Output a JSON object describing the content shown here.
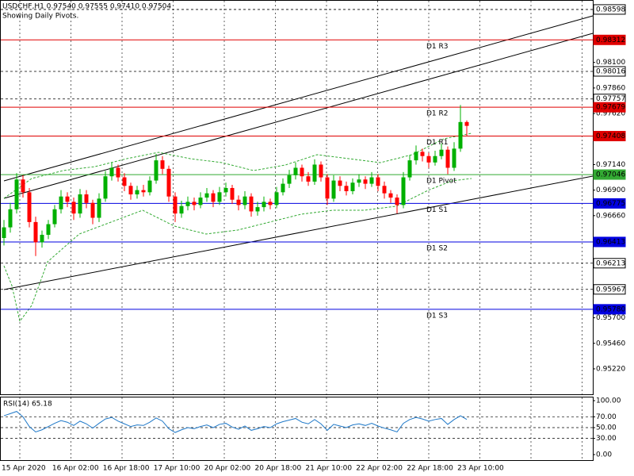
{
  "chart_data": {
    "type": "candlestick",
    "title": "USDCHF,H1  0.97540 0.97555 0.97410 0.97504",
    "subtitle": "Showing Daily Pivots.",
    "up_color": "#00b000",
    "down_color": "#ff0000",
    "grid": true,
    "ylim": [
      0.94981,
      0.98687
    ],
    "yticks": [
      {
        "value": 0.981,
        "label": "0.98100"
      },
      {
        "value": 0.9786,
        "label": "0.97860"
      },
      {
        "value": 0.9762,
        "label": "0.97620"
      },
      {
        "value": 0.9714,
        "label": "0.97140"
      },
      {
        "value": 0.969,
        "label": "0.96900"
      },
      {
        "value": 0.9666,
        "label": "0.96660"
      },
      {
        "value": 0.957,
        "label": "0.95700"
      },
      {
        "value": 0.9546,
        "label": "0.95460"
      },
      {
        "value": 0.9522,
        "label": "0.95220"
      }
    ],
    "levels": [
      0.98598,
      0.98016,
      0.97757,
      0.96213,
      0.95967
    ],
    "pivots": [
      {
        "name": "D1 R3",
        "value": 0.98312,
        "color": "#e00000"
      },
      {
        "name": "D1 R2",
        "value": 0.97679,
        "color": "#e00000"
      },
      {
        "name": "D1 R1",
        "value": 0.97408,
        "color": "#e00000"
      },
      {
        "name": "D1 Pivot",
        "value": 0.97046,
        "color": "#33aa33"
      },
      {
        "name": "D1 S1",
        "value": 0.96775,
        "color": "#0000e0"
      },
      {
        "name": "D1 S2",
        "value": 0.96413,
        "color": "#0000e0"
      },
      {
        "name": "D1 S3",
        "value": {
          "value": 0.9578,
          "label": "0.95780"
        },
        "color": "#0000e0"
      }
    ],
    "x_labels": [
      "15 Apr 2020",
      "16 Apr 02:00",
      "16 Apr 18:00",
      "17 Apr 10:00",
      "20 Apr 02:00",
      "20 Apr 18:00",
      "21 Apr 10:00",
      "22 Apr 02:00",
      "22 Apr 18:00",
      "23 Apr 10:00"
    ],
    "candles": [
      [
        0.9645,
        0.9662,
        0.9638,
        0.9655
      ],
      [
        0.9655,
        0.9678,
        0.965,
        0.9672
      ],
      [
        0.9672,
        0.9706,
        0.9668,
        0.97
      ],
      [
        0.97,
        0.9704,
        0.9683,
        0.9688
      ],
      [
        0.9688,
        0.9692,
        0.9655,
        0.966
      ],
      [
        0.966,
        0.9665,
        0.9628,
        0.9641
      ],
      [
        0.9641,
        0.9652,
        0.9636,
        0.9648
      ],
      [
        0.9648,
        0.9662,
        0.9644,
        0.9658
      ],
      [
        0.9658,
        0.9676,
        0.9655,
        0.9672
      ],
      [
        0.9672,
        0.969,
        0.9668,
        0.9684
      ],
      [
        0.9684,
        0.9688,
        0.9674,
        0.9679
      ],
      [
        0.9679,
        0.9683,
        0.9662,
        0.9668
      ],
      [
        0.9668,
        0.9691,
        0.9664,
        0.9686
      ],
      [
        0.9686,
        0.969,
        0.9673,
        0.9678
      ],
      [
        0.9678,
        0.9681,
        0.9658,
        0.9664
      ],
      [
        0.9664,
        0.9687,
        0.966,
        0.9682
      ],
      [
        0.9682,
        0.9708,
        0.9679,
        0.9703
      ],
      [
        0.9703,
        0.9716,
        0.9699,
        0.9711
      ],
      [
        0.9711,
        0.9714,
        0.9698,
        0.9702
      ],
      [
        0.9702,
        0.9706,
        0.9689,
        0.9694
      ],
      [
        0.9694,
        0.9697,
        0.9681,
        0.9686
      ],
      [
        0.9686,
        0.9694,
        0.9682,
        0.969
      ],
      [
        0.969,
        0.9695,
        0.9684,
        0.9688
      ],
      [
        0.9688,
        0.9703,
        0.9685,
        0.9699
      ],
      [
        0.9699,
        0.9724,
        0.9696,
        0.9718
      ],
      [
        0.9718,
        0.9722,
        0.9705,
        0.971
      ],
      [
        0.971,
        0.9713,
        0.9679,
        0.9684
      ],
      [
        0.9684,
        0.9688,
        0.966,
        0.9668
      ],
      [
        0.9668,
        0.968,
        0.9664,
        0.9675
      ],
      [
        0.9675,
        0.9684,
        0.9671,
        0.9679
      ],
      [
        0.9679,
        0.9683,
        0.9671,
        0.9676
      ],
      [
        0.9676,
        0.9688,
        0.9673,
        0.9683
      ],
      [
        0.9683,
        0.9692,
        0.9679,
        0.9687
      ],
      [
        0.9687,
        0.969,
        0.9674,
        0.9679
      ],
      [
        0.9679,
        0.9693,
        0.9676,
        0.9688
      ],
      [
        0.9688,
        0.9697,
        0.9684,
        0.9692
      ],
      [
        0.9692,
        0.9695,
        0.9677,
        0.9681
      ],
      [
        0.9681,
        0.9685,
        0.9671,
        0.9676
      ],
      [
        0.9676,
        0.9689,
        0.9672,
        0.9684
      ],
      [
        0.9684,
        0.9687,
        0.9665,
        0.967
      ],
      [
        0.967,
        0.9679,
        0.9666,
        0.9674
      ],
      [
        0.9674,
        0.9684,
        0.967,
        0.9679
      ],
      [
        0.9679,
        0.9682,
        0.9672,
        0.9676
      ],
      [
        0.9676,
        0.9693,
        0.9673,
        0.9688
      ],
      [
        0.9688,
        0.9701,
        0.9685,
        0.9696
      ],
      [
        0.9696,
        0.9709,
        0.9692,
        0.9704
      ],
      [
        0.9704,
        0.9716,
        0.97,
        0.9711
      ],
      [
        0.9711,
        0.9714,
        0.9698,
        0.9703
      ],
      [
        0.9703,
        0.9707,
        0.9694,
        0.9698
      ],
      [
        0.9698,
        0.9719,
        0.9695,
        0.9714
      ],
      [
        0.9714,
        0.9717,
        0.9698,
        0.9702
      ],
      [
        0.9702,
        0.9705,
        0.9676,
        0.9682
      ],
      [
        0.9682,
        0.9704,
        0.9679,
        0.9699
      ],
      [
        0.9699,
        0.9703,
        0.9689,
        0.9694
      ],
      [
        0.9694,
        0.9698,
        0.9685,
        0.9689
      ],
      [
        0.9689,
        0.9701,
        0.9686,
        0.9697
      ],
      [
        0.9697,
        0.9705,
        0.9693,
        0.97
      ],
      [
        0.97,
        0.9703,
        0.9691,
        0.9696
      ],
      [
        0.9696,
        0.9707,
        0.9693,
        0.9702
      ],
      [
        0.9702,
        0.9705,
        0.9689,
        0.9694
      ],
      [
        0.9694,
        0.9698,
        0.9682,
        0.9687
      ],
      [
        0.9687,
        0.969,
        0.9678,
        0.9683
      ],
      [
        0.9683,
        0.9686,
        0.9668,
        0.9676
      ],
      [
        0.9676,
        0.9707,
        0.9673,
        0.9702
      ],
      [
        0.9702,
        0.9723,
        0.9699,
        0.9718
      ],
      [
        0.9718,
        0.9732,
        0.9714,
        0.9726
      ],
      [
        0.9726,
        0.9729,
        0.9717,
        0.9722
      ],
      [
        0.9722,
        0.9725,
        0.9711,
        0.9716
      ],
      [
        0.9716,
        0.9727,
        0.9713,
        0.9722
      ],
      [
        0.9722,
        0.9734,
        0.9719,
        0.9728
      ],
      [
        0.9728,
        0.9731,
        0.9705,
        0.9711
      ],
      [
        0.9711,
        0.9735,
        0.9708,
        0.9729
      ],
      [
        0.9729,
        0.977,
        0.9726,
        0.9754
      ],
      [
        0.9754,
        0.97555,
        0.9741,
        0.97504
      ]
    ],
    "rsi": {
      "label": "RSI(14) 65.18",
      "color": "#1e78c8",
      "ylim": [
        -10.3,
        107.4
      ],
      "yticks": [
        {
          "value": 100,
          "label": "100.00"
        },
        {
          "value": 70,
          "label": "70.00"
        },
        {
          "value": 50,
          "label": "50.00"
        },
        {
          "value": 30,
          "label": "30.00"
        },
        {
          "value": 0,
          "label": "0.00"
        }
      ],
      "levels": [
        70,
        50,
        30
      ],
      "values": [
        72,
        76,
        80,
        70,
        52,
        42,
        46,
        52,
        58,
        63,
        60,
        54,
        62,
        57,
        49,
        58,
        66,
        69,
        62,
        57,
        52,
        55,
        54,
        60,
        68,
        62,
        48,
        41,
        46,
        50,
        48,
        52,
        55,
        50,
        56,
        58,
        51,
        47,
        53,
        45,
        48,
        52,
        50,
        57,
        61,
        64,
        67,
        60,
        57,
        65,
        57,
        45,
        56,
        53,
        50,
        55,
        57,
        54,
        58,
        53,
        49,
        46,
        42,
        58,
        65,
        69,
        66,
        62,
        65,
        67,
        56,
        65,
        72,
        65.18
      ]
    }
  }
}
